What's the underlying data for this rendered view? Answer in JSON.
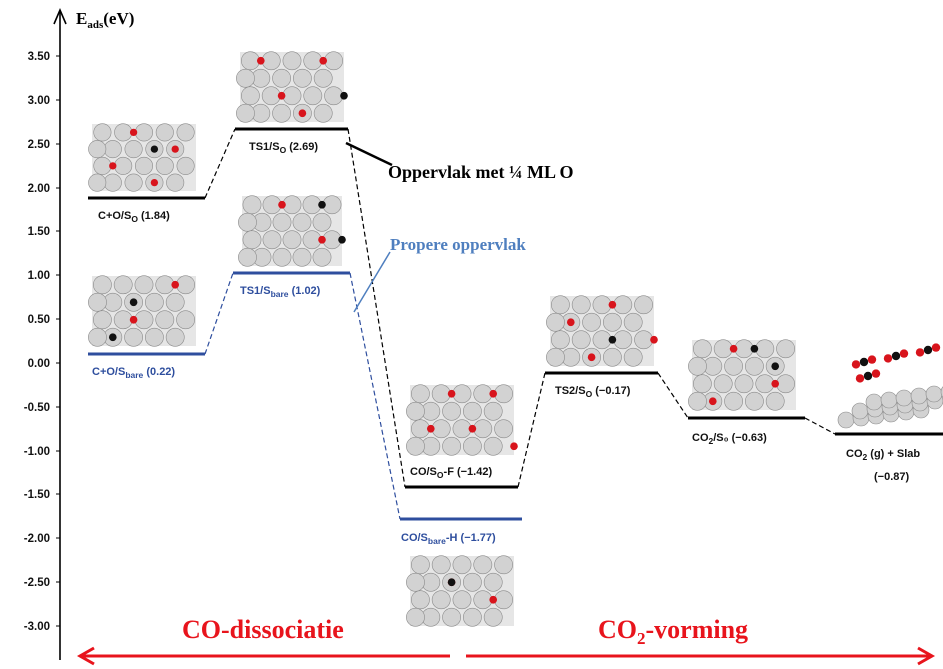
{
  "axis": {
    "label_main": "E",
    "label_sub": "ads",
    "label_unit": "(eV)",
    "ticks": [
      "3.50",
      "3.00",
      "2.50",
      "2.00",
      "1.50",
      "1.00",
      "0.50",
      "0.00",
      "-0.50",
      "-1.00",
      "-1.50",
      "-2.00",
      "-2.50",
      "-3.00"
    ]
  },
  "levels": [
    {
      "main": "C+O/S",
      "sub": "O",
      "rest": " (1.84)",
      "energy": 1.84,
      "path": "black"
    },
    {
      "main": "TS1/S",
      "sub": "O",
      "rest": " (2.69)",
      "energy": 2.69,
      "path": "black"
    },
    {
      "main": "C+O/S",
      "sub": "bare",
      "rest": " (0.22)",
      "energy": 0.22,
      "path": "blue"
    },
    {
      "main": "TS1/S",
      "sub": "bare",
      "rest": " (1.02)",
      "energy": 1.02,
      "path": "blue"
    },
    {
      "main": "CO/S",
      "sub": "O",
      "rest": "-F (−1.42)",
      "energy": -1.42,
      "path": "black"
    },
    {
      "main": "CO/S",
      "sub": "bare",
      "rest": "-H (−1.77)",
      "energy": -1.77,
      "path": "blue"
    },
    {
      "main": "TS2/S",
      "sub": "O",
      "rest": " (−0.17)",
      "energy": -0.17,
      "path": "black"
    },
    {
      "main": "CO",
      "sub": "2",
      "rest": "/S₀ (−0.63)",
      "energy": -0.63,
      "path": "black"
    },
    {
      "main": "CO",
      "sub": "2",
      "rest": " (g) + Slab",
      "line2": "(−0.87)",
      "energy": -0.87,
      "path": "black"
    }
  ],
  "annotations": {
    "oxygen_surface": "Oppervlak met ¼ ML O",
    "clean_surface": "Propere oppervlak"
  },
  "sections": {
    "left": "CO-dissociatie",
    "right_main": "CO",
    "right_sub": "2",
    "right_rest": "-vorming"
  },
  "colors": {
    "black_path": "#000000",
    "blue_path": "#2e4e9e",
    "annotation_blue": "#4f7fbf",
    "arrow_red": "#e8141c"
  }
}
